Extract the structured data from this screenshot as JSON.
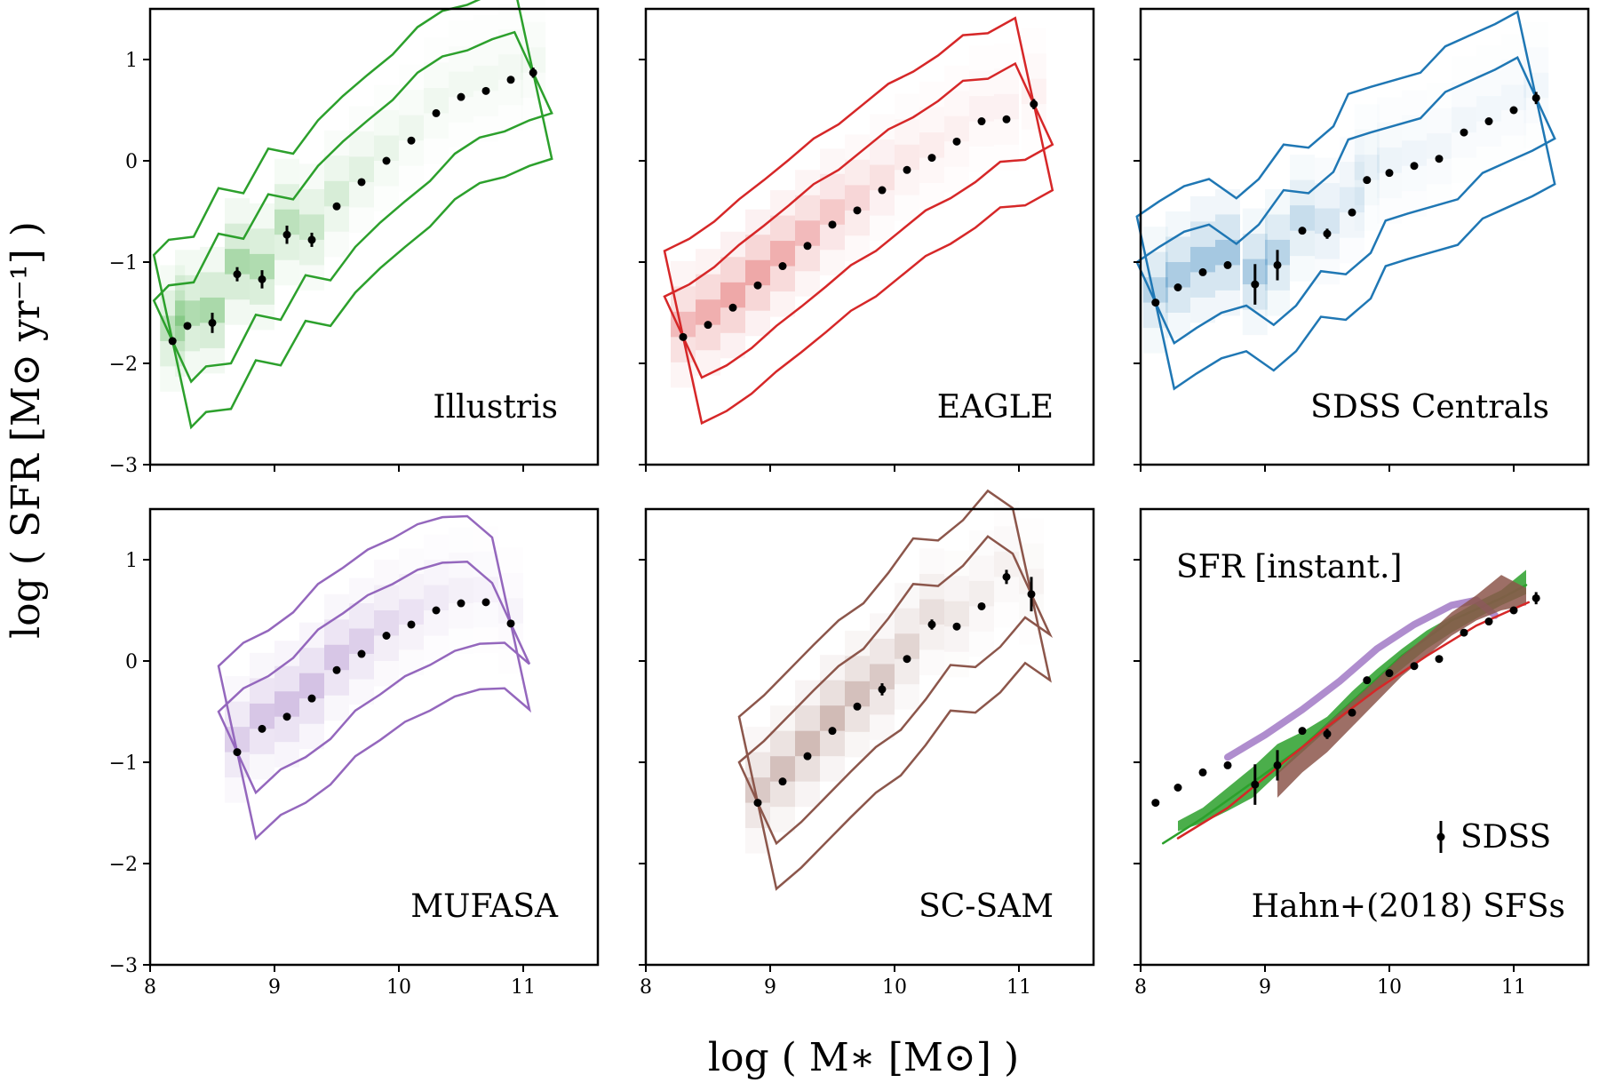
{
  "figure": {
    "xlabel": "log ( M∗ [M⊙] )",
    "ylabel": "log ( SFR [M⊙ yr⁻¹] )"
  },
  "chart_data": [
    {
      "type": "scatter",
      "panel": "Illustris",
      "label": "Illustris",
      "color": "#2ca02c",
      "xlim": [
        8,
        11.6
      ],
      "ylim": [
        -3,
        1.5
      ],
      "xticks": [
        8,
        9,
        10,
        11
      ],
      "yticks": [
        1,
        0,
        -1,
        -2,
        -3
      ],
      "x": [
        8.18,
        8.3,
        8.5,
        8.7,
        8.9,
        9.1,
        9.3,
        9.5,
        9.7,
        9.9,
        10.1,
        10.3,
        10.5,
        10.7,
        10.9,
        11.08
      ],
      "y": [
        -1.78,
        -1.63,
        -1.6,
        -1.12,
        -1.17,
        -0.73,
        -0.78,
        -0.45,
        -0.21,
        0.0,
        0.2,
        0.47,
        0.63,
        0.69,
        0.8,
        0.87
      ],
      "yerr": [
        0,
        0,
        0.1,
        0.07,
        0.09,
        0.09,
        0.07,
        0.03,
        0.03,
        0.03,
        0.03,
        0.03,
        0.03,
        0.03,
        0.03,
        0.05
      ]
    },
    {
      "type": "scatter",
      "panel": "EAGLE",
      "label": "EAGLE",
      "color": "#d62728",
      "xlim": [
        8,
        11.6
      ],
      "ylim": [
        -3,
        1.5
      ],
      "xticks": [
        8,
        9,
        10,
        11
      ],
      "yticks": [
        1,
        0,
        -1,
        -2,
        -3
      ],
      "x": [
        8.3,
        8.5,
        8.7,
        8.9,
        9.1,
        9.3,
        9.5,
        9.7,
        9.9,
        10.1,
        10.3,
        10.5,
        10.7,
        10.9,
        11.12
      ],
      "y": [
        -1.74,
        -1.62,
        -1.45,
        -1.23,
        -1.04,
        -0.84,
        -0.63,
        -0.49,
        -0.29,
        -0.09,
        0.03,
        0.19,
        0.39,
        0.41,
        0.56
      ],
      "yerr": [
        0,
        0,
        0,
        0,
        0,
        0,
        0,
        0,
        0,
        0,
        0,
        0,
        0,
        0,
        0.05
      ]
    },
    {
      "type": "scatter",
      "panel": "SDSS Centrals",
      "label": "SDSS Centrals",
      "color": "#1f77b4",
      "xlim": [
        8,
        11.6
      ],
      "ylim": [
        -3,
        1.5
      ],
      "xticks": [
        8,
        9,
        10,
        11
      ],
      "yticks": [
        1,
        0,
        -1,
        -2,
        -3
      ],
      "x": [
        8.12,
        8.3,
        8.5,
        8.7,
        8.92,
        9.1,
        9.3,
        9.5,
        9.7,
        9.82,
        10.0,
        10.2,
        10.4,
        10.6,
        10.8,
        11.0,
        11.18
      ],
      "y": [
        -1.4,
        -1.25,
        -1.1,
        -1.03,
        -1.22,
        -1.03,
        -0.69,
        -0.72,
        -0.51,
        -0.19,
        -0.12,
        -0.05,
        0.02,
        0.28,
        0.39,
        0.5,
        0.62
      ],
      "yerr": [
        0,
        0,
        0,
        0,
        0.2,
        0.15,
        0,
        0.05,
        0,
        0,
        0,
        0,
        0,
        0,
        0,
        0,
        0.06
      ]
    },
    {
      "type": "scatter",
      "panel": "MUFASA",
      "label": "MUFASA",
      "color": "#9467bd",
      "xlim": [
        8,
        11.6
      ],
      "ylim": [
        -3,
        1.5
      ],
      "xticks": [
        8,
        9,
        10,
        11
      ],
      "yticks": [
        1,
        0,
        -1,
        -2,
        -3
      ],
      "x": [
        8.7,
        8.9,
        9.1,
        9.3,
        9.5,
        9.7,
        9.9,
        10.1,
        10.3,
        10.5,
        10.7,
        10.9
      ],
      "y": [
        -0.9,
        -0.67,
        -0.55,
        -0.37,
        -0.09,
        0.07,
        0.25,
        0.36,
        0.5,
        0.57,
        0.58,
        0.37
      ],
      "yerr": [
        0,
        0,
        0,
        0,
        0,
        0,
        0,
        0,
        0,
        0,
        0,
        0.03
      ]
    },
    {
      "type": "scatter",
      "panel": "SC-SAM",
      "label": "SC-SAM",
      "color": "#8c564b",
      "xlim": [
        8,
        11.6
      ],
      "ylim": [
        -3,
        1.5
      ],
      "xticks": [
        8,
        9,
        10,
        11
      ],
      "yticks": [
        1,
        0,
        -1,
        -2,
        -3
      ],
      "x": [
        8.9,
        9.1,
        9.3,
        9.5,
        9.7,
        9.9,
        10.1,
        10.3,
        10.5,
        10.7,
        10.9,
        11.1
      ],
      "y": [
        -1.4,
        -1.19,
        -0.94,
        -0.69,
        -0.45,
        -0.28,
        0.02,
        0.36,
        0.34,
        0.54,
        0.83,
        0.66
      ],
      "yerr": [
        0,
        0,
        0,
        0,
        0,
        0.06,
        0,
        0.05,
        0,
        0,
        0.07,
        0.17
      ]
    },
    {
      "type": "line",
      "panel": "SFR [instant.]",
      "label": "SFR [instant.]",
      "note": "Hahn+(2018) SFSs",
      "legend": "SDSS",
      "xlim": [
        8,
        11.6
      ],
      "ylim": [
        -3,
        1.5
      ],
      "xticks": [
        8,
        9,
        10,
        11
      ],
      "yticks": [
        1,
        0,
        -1,
        -2,
        -3
      ],
      "sdss": {
        "x": [
          8.12,
          8.3,
          8.5,
          8.7,
          8.92,
          9.1,
          9.3,
          9.5,
          9.7,
          9.82,
          10.0,
          10.2,
          10.4,
          10.6,
          10.8,
          11.0,
          11.18
        ],
        "y": [
          -1.4,
          -1.25,
          -1.1,
          -1.03,
          -1.22,
          -1.03,
          -0.69,
          -0.72,
          -0.51,
          -0.19,
          -0.12,
          -0.05,
          0.02,
          0.28,
          0.39,
          0.5,
          0.62
        ],
        "yerr": [
          0,
          0,
          0,
          0,
          0.2,
          0.15,
          0,
          0.05,
          0,
          0,
          0,
          0,
          0,
          0,
          0,
          0,
          0.06
        ]
      },
      "series": [
        {
          "color": "#2ca02c",
          "style": "band",
          "x": [
            8.3,
            8.5,
            8.7,
            8.9,
            9.1,
            9.3,
            9.5,
            9.7,
            9.9,
            10.1,
            10.3,
            10.5,
            10.7,
            10.9,
            11.1
          ],
          "lo": [
            -1.68,
            -1.6,
            -1.48,
            -1.35,
            -1.12,
            -0.9,
            -0.68,
            -0.48,
            -0.28,
            -0.08,
            0.12,
            0.28,
            0.42,
            0.55,
            0.66
          ],
          "hi": [
            -1.58,
            -1.45,
            -1.25,
            -1.05,
            -0.82,
            -0.7,
            -0.55,
            -0.3,
            -0.08,
            0.12,
            0.3,
            0.44,
            0.58,
            0.7,
            0.9
          ]
        },
        {
          "color": "#2ca02c",
          "style": "line",
          "x": [
            8.18,
            8.5,
            8.9,
            9.3,
            9.7,
            10.1,
            10.5,
            10.9,
            11.1
          ],
          "y": [
            -1.8,
            -1.55,
            -1.2,
            -0.85,
            -0.4,
            0.05,
            0.4,
            0.62,
            0.75
          ]
        },
        {
          "color": "#9467bd",
          "style": "thick",
          "x": [
            8.7,
            9.0,
            9.3,
            9.6,
            9.9,
            10.2,
            10.5,
            10.7,
            10.85
          ],
          "y": [
            -0.95,
            -0.73,
            -0.48,
            -0.2,
            0.12,
            0.36,
            0.55,
            0.6,
            0.45
          ]
        },
        {
          "color": "#8c564b",
          "style": "band",
          "x": [
            9.1,
            9.3,
            9.5,
            9.7,
            9.9,
            10.1,
            10.3,
            10.5,
            10.7,
            10.9,
            11.1
          ],
          "lo": [
            -1.35,
            -1.1,
            -0.9,
            -0.65,
            -0.4,
            -0.15,
            0.05,
            0.25,
            0.4,
            0.5,
            0.55
          ],
          "hi": [
            -1.1,
            -0.85,
            -0.62,
            -0.4,
            -0.18,
            0.05,
            0.25,
            0.48,
            0.65,
            0.85,
            0.72
          ]
        },
        {
          "color": "#d62728",
          "style": "line",
          "x": [
            8.3,
            8.7,
            9.1,
            9.5,
            9.9,
            10.3,
            10.7,
            11.12
          ],
          "y": [
            -1.75,
            -1.45,
            -1.05,
            -0.65,
            -0.28,
            0.05,
            0.35,
            0.58
          ]
        }
      ]
    }
  ]
}
